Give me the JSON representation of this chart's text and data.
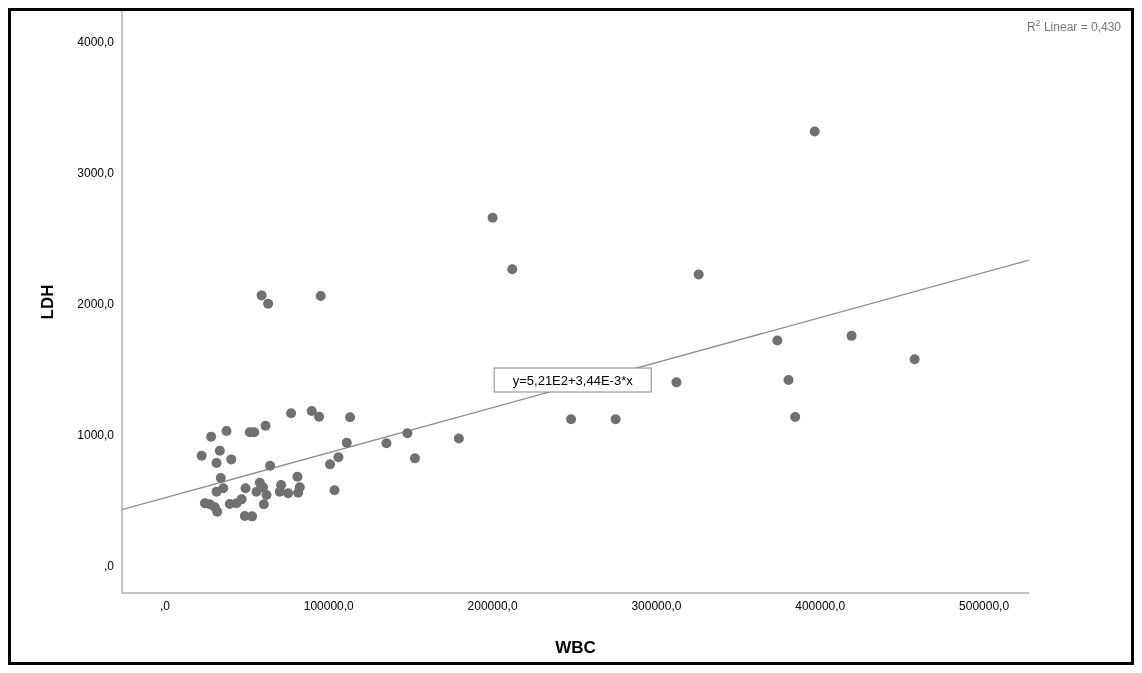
{
  "chart_data": {
    "type": "scatter",
    "xlabel": "WBC",
    "ylabel": "LDH",
    "xlim": [
      -26200,
      527400
    ],
    "ylim": [
      -206,
      4237
    ],
    "xticks": [
      {
        "value": 0,
        "label": ",0"
      },
      {
        "value": 100000,
        "label": "100000,0"
      },
      {
        "value": 200000,
        "label": "200000,0"
      },
      {
        "value": 300000,
        "label": "300000,0"
      },
      {
        "value": 400000,
        "label": "400000,0"
      },
      {
        "value": 500000,
        "label": "500000,0"
      }
    ],
    "yticks": [
      {
        "value": 0,
        "label": ",0"
      },
      {
        "value": 1000,
        "label": "1000,0"
      },
      {
        "value": 2000,
        "label": "2000,0"
      },
      {
        "value": 3000,
        "label": "3000,0"
      },
      {
        "value": 4000,
        "label": "4000,0"
      }
    ],
    "series": [
      {
        "color": "#707070",
        "marker": "circle",
        "x": [
          22400,
          28200,
          37600,
          33500,
          31500,
          40500,
          51800,
          54500,
          61400,
          77000,
          89600,
          94100,
          113000,
          64200,
          34100,
          35600,
          31500,
          49200,
          57900,
          59900,
          55900,
          62000,
          70900,
          70100,
          75200,
          80900,
          82300,
          81300,
          60400,
          24400,
          27400,
          30500,
          31900,
          39600,
          43700,
          46800,
          48800,
          53200,
          100800,
          105900,
          111000,
          103500,
          135200,
          148000,
          152600,
          59000,
          63000,
          95100,
          212000,
          396600,
          200000,
          325800,
          373800,
          419100,
          457600,
          312200,
          380600,
          384700,
          247900,
          275100,
          179400
        ],
        "values": [
          842,
          987,
          1031,
          880,
          786,
          814,
          1021,
          1021,
          1071,
          1166,
          1183,
          1140,
          1135,
          766,
          672,
          593,
          567,
          593,
          636,
          601,
          567,
          542,
          618,
          567,
          555,
          682,
          601,
          560,
          471,
          479,
          471,
          448,
          415,
          473,
          479,
          509,
          382,
          379,
          776,
          830,
          941,
          578,
          937,
          1013,
          822,
          2066,
          2002,
          2061,
          2265,
          3317,
          2659,
          2225,
          1722,
          1757,
          1579,
          1402,
          1420,
          1138,
          1121,
          1121,
          973
        ]
      },
      {
        "type": "line",
        "color": "#8c8c8c",
        "marker": "none",
        "x": [
          -26200,
          527400
        ],
        "values": [
          431,
          2335
        ]
      }
    ],
    "annotations": [
      {
        "text": "y=5,21E2+3,44E-3*x",
        "x": 248900,
        "y": 1420
      },
      "R$^{2}$ Linear = 0,430"
    ]
  }
}
